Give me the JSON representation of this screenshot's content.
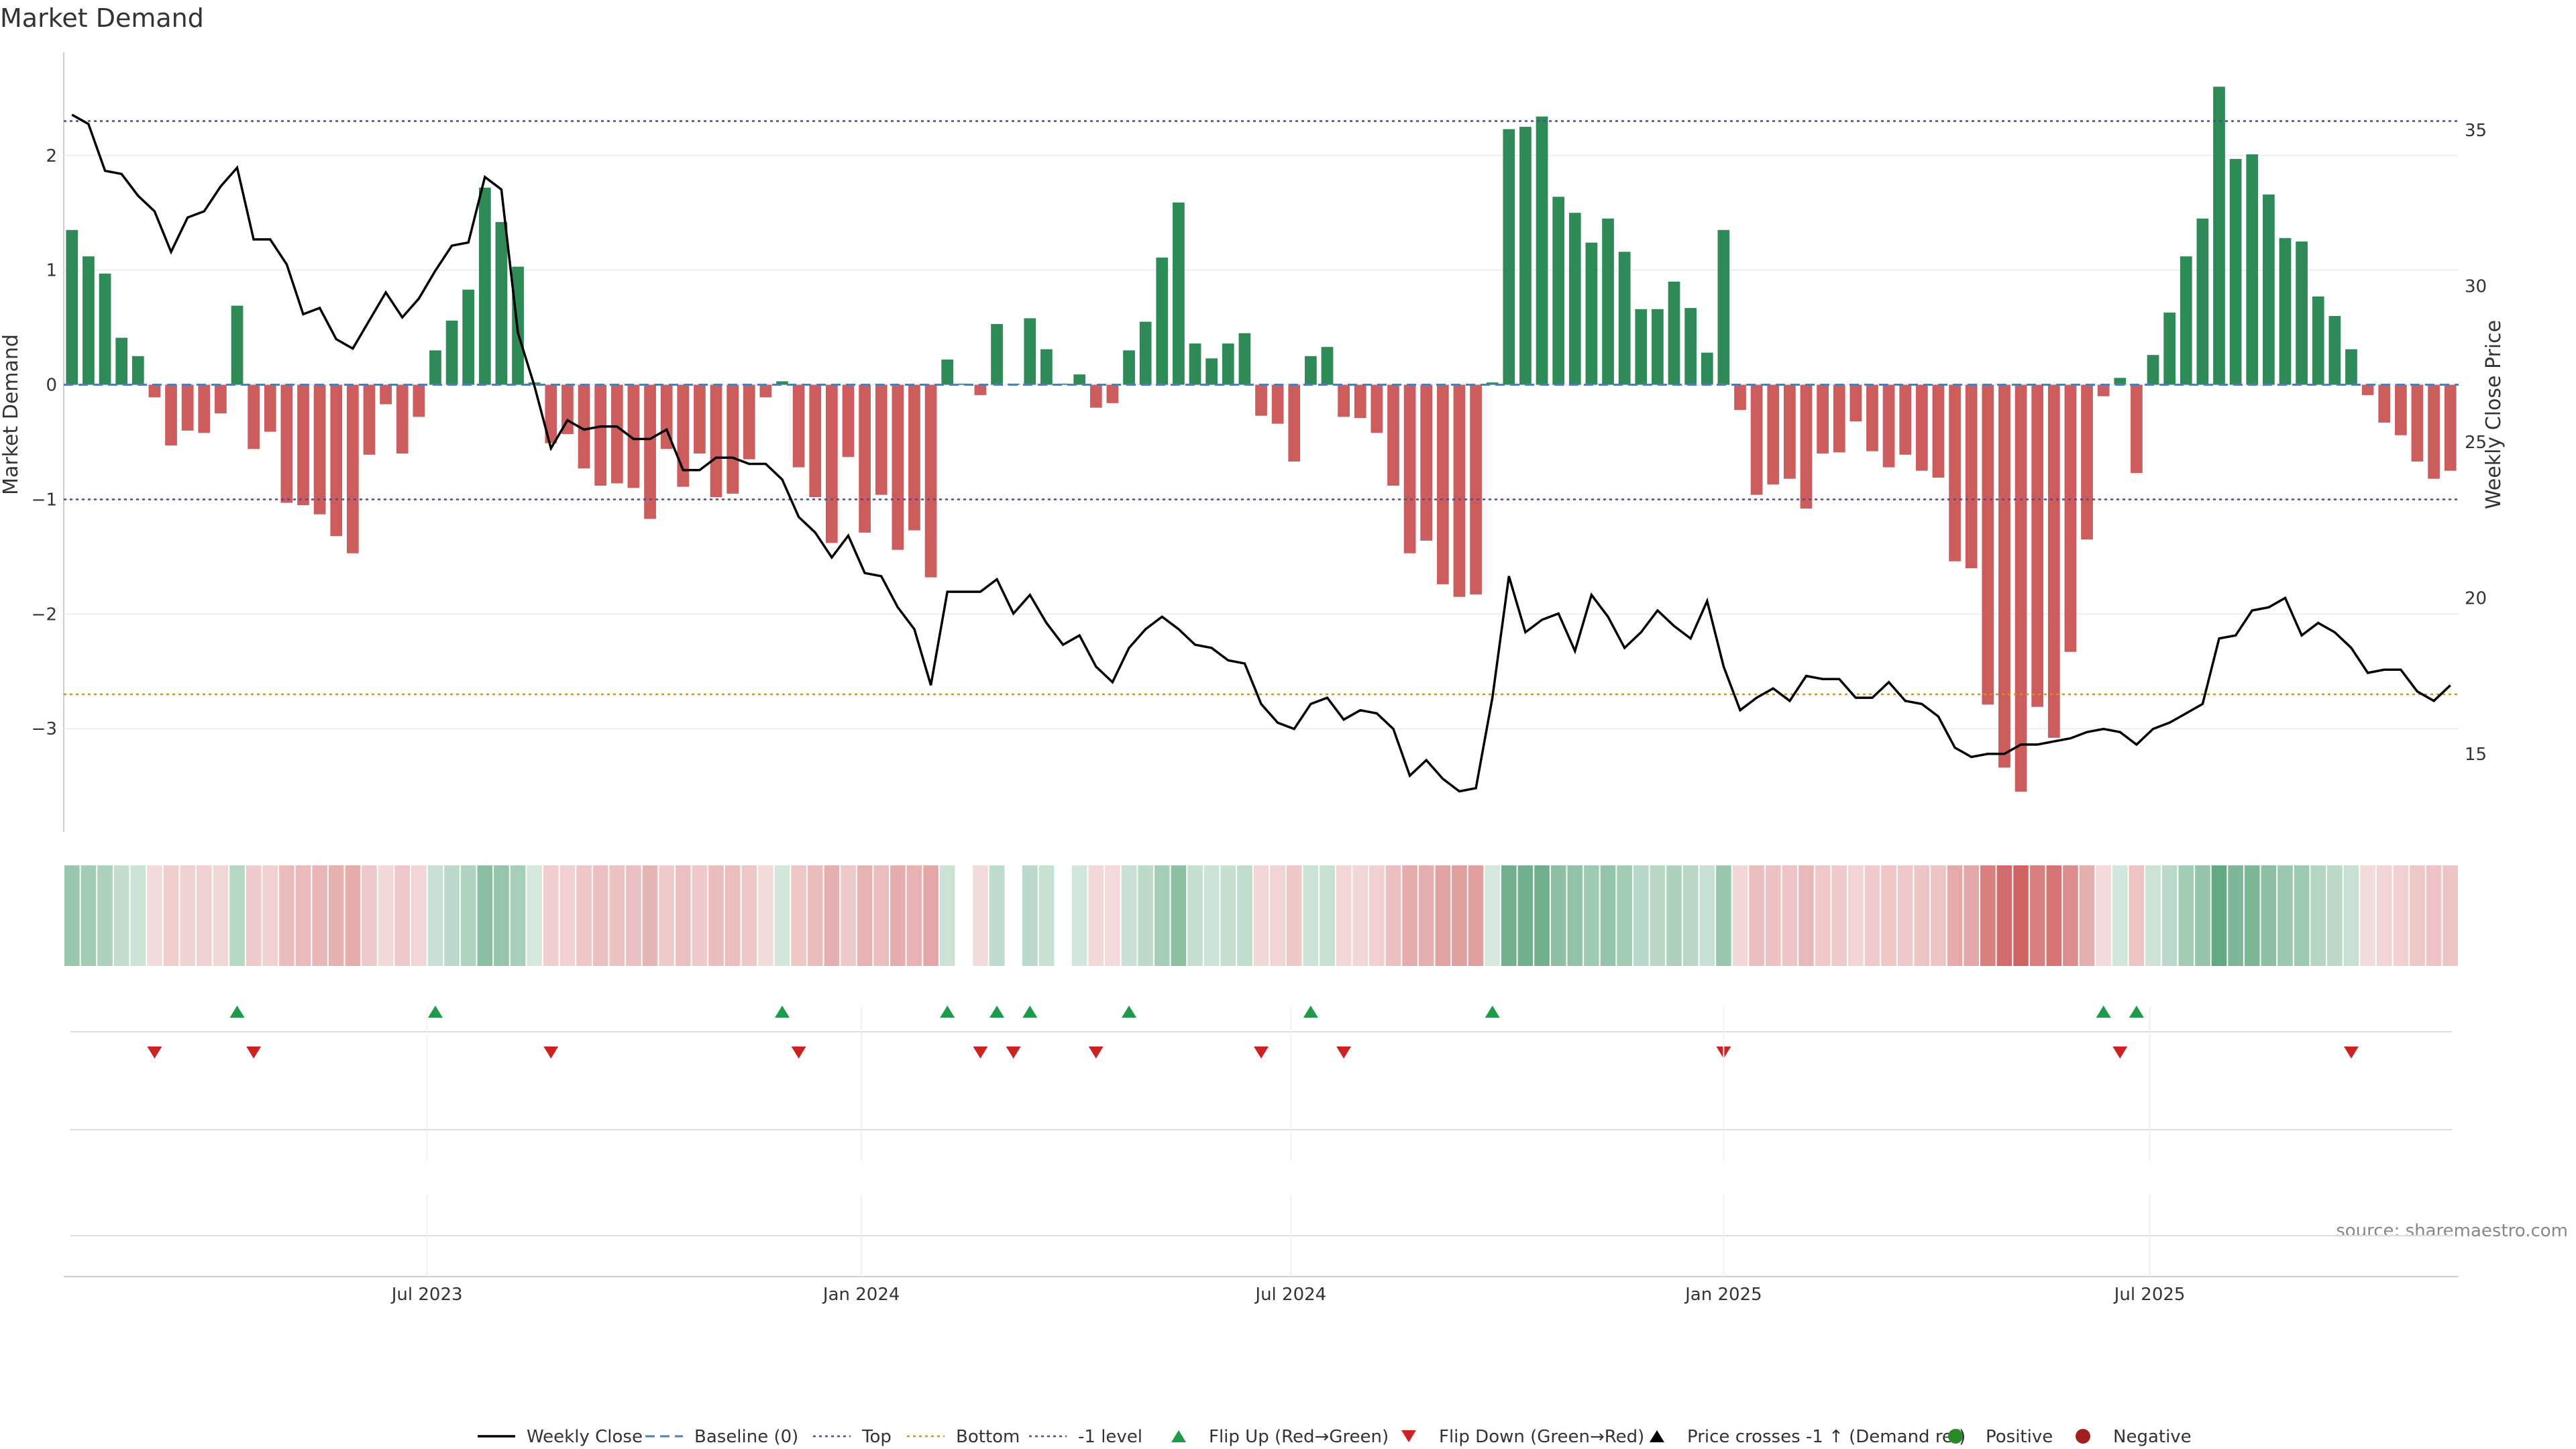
{
  "chart_data": {
    "type": "bar",
    "title": "Market Demand",
    "ylabel": "Market Demand",
    "y2label": "Weekly Close Price",
    "source": "source: sharemaestro.com",
    "ylim": [
      -3.9,
      2.9
    ],
    "y2lim": [
      12.5,
      37.5
    ],
    "yticks": [
      -3,
      -2,
      -1,
      0,
      1,
      2
    ],
    "yticklabels": [
      "−3",
      "−2",
      "−1",
      "0",
      "1",
      "2"
    ],
    "y2ticks": [
      15,
      20,
      25,
      30,
      35
    ],
    "top_level": 2.3,
    "bottom_level": -2.7,
    "minus1_level": -1,
    "xticks": [
      {
        "label": "Jul 2023",
        "index": 22
      },
      {
        "label": "Jan 2024",
        "index": 48.3
      },
      {
        "label": "Jul 2024",
        "index": 74.3
      },
      {
        "label": "Jan 2025",
        "index": 100.5
      },
      {
        "label": "Jul 2025",
        "index": 126.3
      }
    ],
    "demand": [
      1.35,
      1.12,
      0.97,
      0.41,
      0.25,
      -0.11,
      -0.53,
      -0.4,
      -0.42,
      -0.25,
      0.69,
      -0.56,
      -0.41,
      -1.03,
      -1.05,
      -1.13,
      -1.32,
      -1.47,
      -0.61,
      -0.17,
      -0.6,
      -0.28,
      0.3,
      0.56,
      0.83,
      1.72,
      1.42,
      1.03,
      0.02,
      -0.51,
      -0.43,
      -0.73,
      -0.88,
      -0.86,
      -0.9,
      -1.17,
      -0.56,
      -0.89,
      -0.6,
      -0.98,
      -0.95,
      -0.65,
      -0.11,
      0.03,
      -0.72,
      -0.98,
      -1.38,
      -0.63,
      -1.29,
      -0.96,
      -1.44,
      -1.27,
      -1.68,
      0.22,
      0.01,
      -0.09,
      0.53,
      0.01,
      0.58,
      0.31,
      0.01,
      0.09,
      -0.2,
      -0.16,
      0.3,
      0.55,
      1.11,
      1.59,
      0.36,
      0.23,
      0.36,
      0.45,
      -0.27,
      -0.34,
      -0.67,
      0.25,
      0.33,
      -0.28,
      -0.29,
      -0.42,
      -0.88,
      -1.47,
      -1.36,
      -1.74,
      -1.85,
      -1.83,
      0.02,
      2.23,
      2.25,
      2.34,
      1.64,
      1.5,
      1.24,
      1.45,
      1.16,
      0.66,
      0.66,
      0.9,
      0.67,
      0.28,
      1.35,
      -0.22,
      -0.96,
      -0.87,
      -0.82,
      -1.08,
      -0.6,
      -0.59,
      -0.32,
      -0.58,
      -0.72,
      -0.61,
      -0.75,
      -0.81,
      -1.54,
      -1.6,
      -2.79,
      -3.34,
      -3.55,
      -2.81,
      -3.08,
      -2.33,
      -1.35,
      -0.1,
      0.06,
      -0.77,
      0.26,
      0.63,
      1.12,
      1.45,
      2.6,
      1.97,
      2.01,
      1.66,
      1.28,
      1.25,
      0.77,
      0.6,
      0.31,
      -0.09,
      -0.33,
      -0.44,
      -0.67,
      -0.82,
      -0.75
    ],
    "close": [
      35.5,
      35.2,
      33.7,
      33.6,
      32.9,
      32.4,
      31.1,
      32.2,
      32.4,
      33.2,
      33.8,
      31.5,
      31.5,
      30.7,
      29.1,
      29.3,
      28.3,
      28.0,
      28.9,
      29.8,
      29.0,
      29.6,
      30.5,
      31.3,
      31.4,
      33.5,
      33.1,
      28.5,
      26.8,
      24.8,
      25.7,
      25.4,
      25.5,
      25.5,
      25.1,
      25.1,
      25.4,
      24.1,
      24.1,
      24.5,
      24.5,
      24.3,
      24.3,
      23.8,
      22.6,
      22.1,
      21.3,
      22.0,
      20.8,
      20.7,
      19.7,
      19.0,
      17.2,
      20.2,
      20.2,
      20.2,
      20.6,
      19.5,
      20.1,
      19.2,
      18.5,
      18.8,
      17.8,
      17.3,
      18.4,
      19.0,
      19.4,
      19.0,
      18.5,
      18.4,
      18.0,
      17.9,
      16.6,
      16.0,
      15.8,
      16.6,
      16.8,
      16.1,
      16.4,
      16.3,
      15.8,
      14.3,
      14.8,
      14.2,
      13.8,
      13.9,
      16.8,
      20.7,
      18.9,
      19.3,
      19.5,
      18.3,
      20.1,
      19.4,
      18.4,
      18.9,
      19.6,
      19.1,
      18.7,
      19.9,
      17.8,
      16.4,
      16.8,
      17.1,
      16.7,
      17.5,
      17.4,
      17.4,
      16.8,
      16.8,
      17.3,
      16.7,
      16.6,
      16.2,
      15.2,
      14.9,
      15.0,
      15.0,
      15.3,
      15.3,
      15.4,
      15.5,
      15.7,
      15.8,
      15.7,
      15.3,
      15.8,
      16.0,
      16.3,
      16.6,
      18.7,
      18.8,
      19.6,
      19.7,
      20.0,
      18.8,
      19.2,
      18.9,
      18.4,
      17.6,
      17.7,
      17.7,
      17.0,
      16.7,
      17.2
    ],
    "flip_up": [
      10,
      22,
      43,
      53,
      56,
      58,
      64,
      75,
      86,
      123,
      125
    ],
    "flip_down": [
      5,
      11,
      29,
      44,
      55,
      57,
      62,
      72,
      77,
      100,
      124,
      138
    ],
    "legend": [
      "Weekly Close",
      "Baseline (0)",
      "Top",
      "Bottom",
      "-1 level",
      "Flip Up (Red→Green)",
      "Flip Down (Green→Red)",
      "Price crosses -1 ↑ (Demand ref)",
      "Positive",
      "Negative"
    ],
    "colors": {
      "positive": "#2e8b57",
      "negative": "#cd5c5c",
      "close": "#000000",
      "top": "#4b4b8f",
      "bottom": "#d4941a",
      "minus1": "#4b4b8f",
      "baseline": "#4f7fb8",
      "flip_up": "#1f9a4a",
      "flip_down": "#cc2222",
      "legend_positive": "#2a8a2a",
      "legend_negative": "#a31f1f"
    }
  }
}
